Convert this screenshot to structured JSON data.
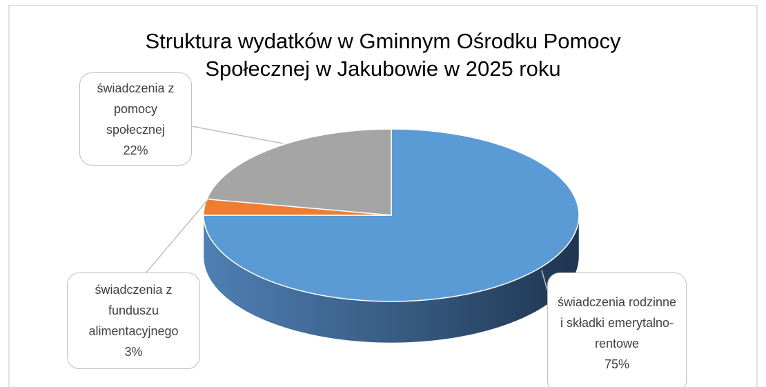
{
  "chart_data": {
    "type": "pie",
    "title": "Struktura wydatków w Gminnym Ośrodku Pomocy Społecznej w Jakubowie w 2025 roku",
    "categories": [
      "świadczenia rodzinne i składki emerytalno-rentowe",
      "świadczenia z funduszu alimentacyjnego",
      "świadczenia z pomocy społecznej"
    ],
    "values": [
      75,
      3,
      22
    ],
    "value_labels": [
      "75%",
      "3%",
      "22%"
    ],
    "colors": [
      "#5b9bd5",
      "#ed7d31",
      "#a5a5a5"
    ]
  }
}
